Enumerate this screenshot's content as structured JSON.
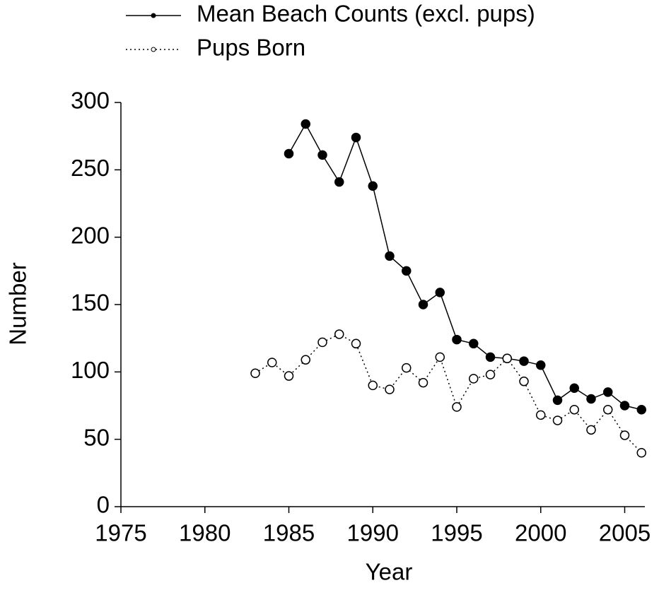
{
  "chart_data": {
    "type": "line",
    "xlabel": "Year",
    "ylabel": "Number",
    "xlim": [
      1975,
      2006.2
    ],
    "xticks": [
      1975,
      1980,
      1985,
      1990,
      1995,
      2000,
      2005
    ],
    "ylim": [
      0,
      300
    ],
    "yticks": [
      0,
      50,
      100,
      150,
      200,
      250,
      300
    ],
    "legend": "top",
    "series": [
      {
        "name": "Mean Beach Counts (excl. pups)",
        "color": "#000000",
        "marker": "filled",
        "linestyle": "solid",
        "x": [
          1985,
          1986,
          1987,
          1988,
          1989,
          1990,
          1991,
          1992,
          1993,
          1994,
          1995,
          1996,
          1997,
          1998,
          1999,
          2000,
          2001,
          2002,
          2003,
          2004,
          2005,
          2006
        ],
        "values": [
          262,
          284,
          261,
          241,
          274,
          238,
          186,
          175,
          150,
          159,
          124,
          121,
          111,
          110,
          108,
          105,
          79,
          88,
          80,
          85,
          75,
          72
        ]
      },
      {
        "name": "Pups Born",
        "color": "#000000",
        "marker": "open",
        "linestyle": "dotted",
        "x": [
          1983,
          1984,
          1985,
          1986,
          1987,
          1988,
          1989,
          1990,
          1991,
          1992,
          1993,
          1994,
          1995,
          1996,
          1997,
          1998,
          1999,
          2000,
          2001,
          2002,
          2003,
          2004,
          2005,
          2006
        ],
        "values": [
          99,
          107,
          97,
          109,
          122,
          128,
          121,
          90,
          87,
          103,
          92,
          111,
          74,
          95,
          98,
          110,
          93,
          68,
          64,
          72,
          57,
          72,
          53,
          40
        ]
      }
    ]
  }
}
